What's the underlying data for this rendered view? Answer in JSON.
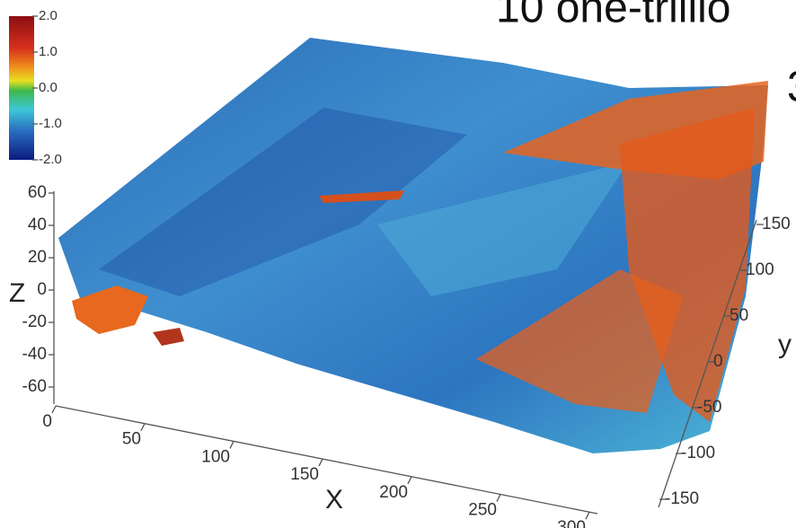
{
  "title_fragment": "10 one-trillio",
  "side_fragment": "3",
  "colorbar": {
    "ticks": [
      "2.0",
      "1.0",
      "0.0",
      "-1.0",
      "-2.0"
    ]
  },
  "axes": {
    "z": {
      "label": "Z",
      "ticks": [
        "60",
        "40",
        "20",
        "0",
        "-20",
        "-40",
        "-60"
      ]
    },
    "x": {
      "label": "X",
      "ticks": [
        "0",
        "50",
        "100",
        "150",
        "200",
        "250",
        "300"
      ]
    },
    "y": {
      "label": "y",
      "ticks": [
        "150",
        "100",
        "50",
        "0",
        "-50",
        "-100",
        "-150"
      ]
    }
  }
}
